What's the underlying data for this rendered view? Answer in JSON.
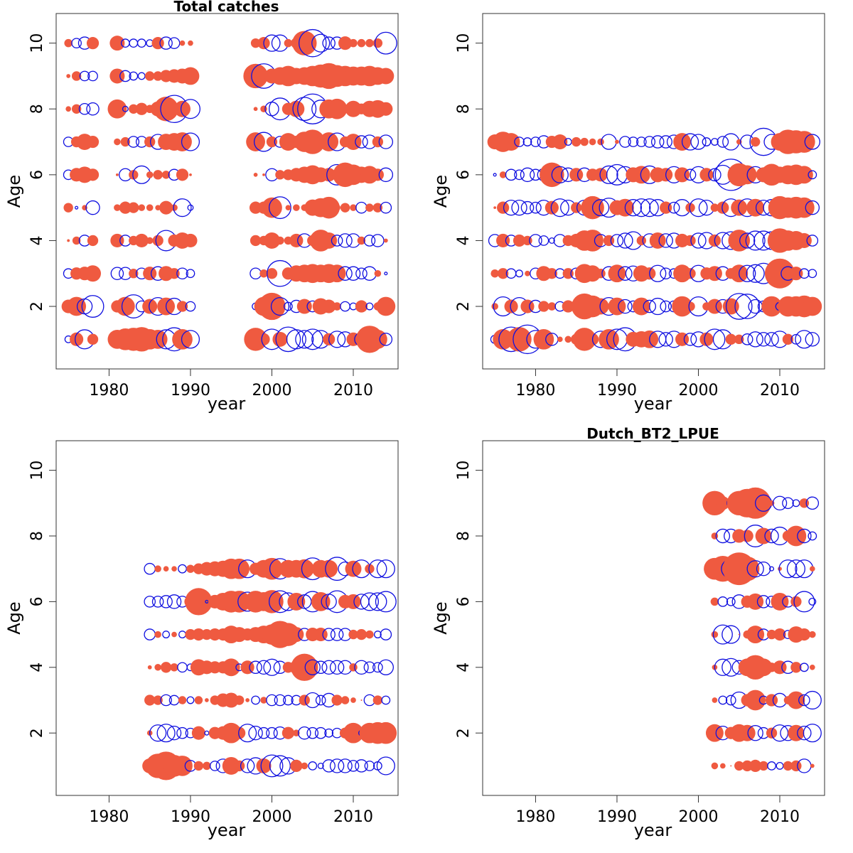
{
  "figure": {
    "background": "#ffffff",
    "positive_color": "#ef5a40",
    "negative_color": "#1010e0"
  },
  "chart_data": [
    {
      "type": "scatter",
      "subtype": "bubble",
      "title": "Total catches",
      "xlabel": "year",
      "ylabel": "Age",
      "xlim": [
        1973.5,
        2015.5
      ],
      "ylim": [
        0.1,
        10.9
      ],
      "x_ticks": [
        1980,
        1990,
        2000,
        2010
      ],
      "y_ticks": [
        2,
        4,
        6,
        8,
        10
      ],
      "x": [
        1975,
        1976,
        1977,
        1978,
        1981,
        1982,
        1983,
        1984,
        1985,
        1986,
        1987,
        1988,
        1989,
        1990,
        1998,
        1999,
        2000,
        2001,
        2002,
        2003,
        2004,
        2005,
        2006,
        2007,
        2008,
        2009,
        2010,
        2011,
        2012,
        2013,
        2014
      ],
      "ages": [
        1,
        2,
        3,
        4,
        5,
        6,
        7,
        8,
        9,
        10
      ],
      "residuals": [
        [
          -0.5,
          1.0,
          -1.4,
          0.8,
          1.4,
          1.6,
          1.7,
          1.8,
          1.5,
          1.4,
          -1.4,
          -1.7,
          1.5,
          -1.3,
          1.7,
          0.9,
          -1.5,
          1.1,
          -1.8,
          -1.4,
          -1.3,
          -1.5,
          -1.3,
          0.9,
          -1.2,
          -1.1,
          1.0,
          -1.0,
          2.0,
          1.4,
          -0.9
        ],
        [
          1.0,
          1.4,
          -1.1,
          -1.6,
          0.9,
          1.4,
          -1.7,
          -0.8,
          1.1,
          -1.3,
          1.3,
          -1.2,
          0.8,
          -0.7,
          -0.5,
          1.4,
          2.0,
          -1.3,
          -0.6,
          -0.9,
          1.1,
          -0.8,
          1.2,
          1.0,
          0.6,
          -0.7,
          -0.5,
          0.9,
          -0.5,
          0.6,
          1.4
        ],
        [
          -0.7,
          0.9,
          1.0,
          1.2,
          -0.9,
          -0.9,
          0.7,
          -0.8,
          1.0,
          -1.0,
          1.1,
          0.8,
          -0.8,
          -0.6,
          -0.8,
          0.6,
          0.8,
          -1.9,
          0.9,
          1.2,
          1.3,
          1.4,
          1.3,
          1.4,
          1.3,
          -1.0,
          -1.0,
          -0.8,
          -1.0,
          0.5,
          -0.2
        ],
        [
          0.2,
          0.6,
          -0.8,
          0.8,
          1.0,
          -0.8,
          0.7,
          1.0,
          0.5,
          0.8,
          -1.5,
          0.9,
          1.2,
          1.0,
          0.8,
          0.7,
          1.2,
          0.6,
          0.6,
          1.0,
          -1.0,
          0.8,
          1.6,
          1.2,
          -0.8,
          -1.0,
          -1.0,
          0.6,
          -0.8,
          -0.9,
          0.3
        ],
        [
          0.7,
          -0.2,
          0.4,
          -1.0,
          0.5,
          0.9,
          0.8,
          0.5,
          0.5,
          0.4,
          1.0,
          0.5,
          -1.3,
          -0.4,
          0.9,
          0.9,
          1.5,
          -1.6,
          0.4,
          0.5,
          0.5,
          1.2,
          1.4,
          1.6,
          0.5,
          0.7,
          0.5,
          -0.8,
          0.6,
          0.7,
          -0.8
        ],
        [
          -0.7,
          1.0,
          1.2,
          0.9,
          0.2,
          -0.9,
          0.7,
          -1.3,
          0.5,
          0.7,
          0.6,
          -0.8,
          0.9,
          0.2,
          0.3,
          0.2,
          -0.9,
          0.7,
          0.8,
          1.0,
          1.2,
          1.4,
          1.1,
          1.0,
          -1.5,
          1.8,
          1.5,
          1.2,
          1.3,
          0.9,
          -1.0
        ],
        [
          -0.7,
          0.8,
          1.2,
          0.9,
          0.5,
          0.7,
          -0.8,
          -0.8,
          0.8,
          -1.1,
          1.2,
          1.3,
          1.4,
          -1.3,
          1.4,
          -1.4,
          0.8,
          -0.8,
          1.3,
          0.9,
          1.5,
          1.8,
          0.8,
          1.4,
          -1.3,
          0.8,
          1.2,
          -0.9,
          -1.0,
          0.8,
          -1.0
        ],
        [
          0.4,
          0.7,
          -0.8,
          -0.9,
          1.4,
          -0.4,
          0.7,
          0.9,
          0.6,
          1.1,
          1.8,
          -2.0,
          1.2,
          -1.4,
          0.3,
          0.5,
          -1.0,
          -1.6,
          0.9,
          1.2,
          -1.7,
          -2.2,
          -1.3,
          1.4,
          1.5,
          0.2,
          1.2,
          0.8,
          1.2,
          1.3,
          1.0
        ],
        [
          0.3,
          0.7,
          -0.7,
          -0.7,
          1.1,
          -0.8,
          -0.6,
          -0.5,
          0.7,
          0.7,
          0.9,
          1.0,
          1.1,
          1.3,
          1.8,
          -1.8,
          1.1,
          1.3,
          1.5,
          1.2,
          1.3,
          1.5,
          1.7,
          1.9,
          1.6,
          1.5,
          1.4,
          1.4,
          1.5,
          1.3,
          1.2
        ],
        [
          0.6,
          -0.7,
          -0.9,
          0.9,
          1.1,
          -0.6,
          -0.6,
          -0.6,
          -0.5,
          0.9,
          -0.9,
          -0.8,
          0.4,
          0.4,
          0.7,
          0.9,
          -1.2,
          -1.2,
          0.6,
          0.8,
          1.8,
          -2.0,
          -1.3,
          -0.9,
          -0.9,
          1.0,
          0.6,
          0.6,
          0.6,
          0.7,
          -1.6
        ]
      ]
    },
    {
      "type": "scatter",
      "subtype": "bubble",
      "title": "",
      "xlabel": "year",
      "ylabel": "Age",
      "xlim": [
        1973.5,
        2015.5
      ],
      "ylim": [
        0.1,
        10.9
      ],
      "x_ticks": [
        1980,
        1990,
        2000,
        2010
      ],
      "y_ticks": [
        2,
        4,
        6,
        8,
        10
      ],
      "x": [
        1975,
        1976,
        1977,
        1978,
        1979,
        1980,
        1981,
        1982,
        1983,
        1984,
        1985,
        1986,
        1987,
        1988,
        1989,
        1990,
        1991,
        1992,
        1993,
        1994,
        1995,
        1996,
        1997,
        1998,
        1999,
        2000,
        2001,
        2002,
        2003,
        2004,
        2005,
        2006,
        2007,
        2008,
        2009,
        2010,
        2011,
        2012,
        2013,
        2014
      ],
      "ages": [
        1,
        2,
        3,
        4,
        5,
        6,
        7
      ],
      "residuals": [
        [
          -0.6,
          1.5,
          -1.8,
          1.8,
          -2.1,
          -1.3,
          1.5,
          -0.9,
          0.4,
          0.5,
          0.8,
          1.7,
          0.9,
          -1.2,
          1.5,
          -1.5,
          -1.7,
          1.1,
          1.2,
          1.3,
          -1.2,
          -1.0,
          -1.2,
          1.0,
          -0.9,
          -1.1,
          1.0,
          -1.5,
          -1.4,
          0.8,
          0.7,
          -0.8,
          -1.1,
          -1.0,
          -1.0,
          -1.2,
          0.8,
          -0.7,
          -1.3,
          -1.0
        ],
        [
          0.5,
          -1.4,
          1.0,
          -1.3,
          1.0,
          -0.9,
          0.8,
          0.6,
          -0.7,
          0.9,
          0.8,
          1.9,
          1.6,
          1.2,
          -1.3,
          1.3,
          -1.0,
          -0.8,
          1.3,
          -0.9,
          -1.2,
          -0.8,
          -0.8,
          1.5,
          0.7,
          -1.4,
          0.6,
          1.1,
          -1.0,
          1.2,
          -1.9,
          -1.8,
          -1.0,
          -0.8,
          1.5,
          -0.6,
          1.5,
          1.5,
          1.6,
          1.4
        ],
        [
          0.6,
          0.8,
          -0.7,
          -0.5,
          0.4,
          -0.8,
          1.1,
          0.8,
          -0.7,
          0.8,
          -0.8,
          1.4,
          1.2,
          0.7,
          -1.0,
          1.3,
          -1.0,
          -1.1,
          1.2,
          0.9,
          -1.2,
          -0.8,
          -0.7,
          1.3,
          0.8,
          -1.2,
          0.9,
          1.1,
          -1.0,
          0.8,
          1.3,
          -1.2,
          -1.3,
          -1.5,
          1.0,
          2.2,
          -1.0,
          1.0,
          -0.7,
          -0.6
        ],
        [
          -0.9,
          1.0,
          -0.8,
          0.9,
          0.7,
          -0.9,
          -0.7,
          -0.4,
          -0.9,
          0.8,
          1.0,
          1.5,
          1.6,
          -0.9,
          0.8,
          -0.9,
          -1.1,
          -1.3,
          0.7,
          -1.0,
          1.2,
          -1.0,
          -1.1,
          1.0,
          0.8,
          -1.1,
          -1.2,
          0.9,
          -1.2,
          -1.3,
          1.6,
          -1.1,
          -1.4,
          -1.4,
          -1.3,
          1.8,
          1.5,
          1.4,
          1.1,
          -0.8
        ],
        [
          0.2,
          0.9,
          -1.1,
          -1.1,
          -0.9,
          -0.8,
          -1.1,
          1.0,
          -1.3,
          -1.1,
          0.8,
          -1.1,
          1.7,
          -1.2,
          -1.4,
          1.1,
          1.3,
          -1.2,
          -1.3,
          -1.3,
          -1.2,
          0.9,
          -0.8,
          -1.2,
          0.7,
          -1.3,
          -1.1,
          0.6,
          0.9,
          -1.3,
          1.2,
          -1.3,
          1.3,
          -1.1,
          -1.2,
          1.7,
          1.5,
          1.6,
          1.5,
          -1.0
        ],
        [
          -0.2,
          0.5,
          -0.8,
          -0.7,
          -1.0,
          -0.8,
          -0.9,
          1.8,
          -1.2,
          -1.0,
          1.0,
          -1.0,
          0.9,
          1.0,
          -1.3,
          -1.5,
          -1.2,
          1.1,
          1.3,
          -1.3,
          1.1,
          1.0,
          -1.2,
          1.1,
          -0.8,
          -1.2,
          1.0,
          -0.9,
          -1.4,
          -2.3,
          1.7,
          1.4,
          -1.2,
          1.1,
          1.6,
          1.2,
          1.4,
          1.5,
          1.3,
          -0.6
        ],
        [
          1.1,
          1.5,
          1.3,
          -0.7,
          -0.6,
          -0.7,
          -0.9,
          0.9,
          1.1,
          -0.5,
          0.7,
          0.6,
          0.5,
          0.5,
          -1.1,
          0.3,
          -0.8,
          -0.7,
          -0.7,
          -0.8,
          -0.9,
          -0.9,
          -1.0,
          1.3,
          -1.2,
          -1.1,
          -0.6,
          -0.5,
          -0.8,
          -1.2,
          0.4,
          -1.0,
          0.7,
          -2.0,
          -1.1,
          1.3,
          1.8,
          1.7,
          1.6,
          -1.1
        ]
      ]
    },
    {
      "type": "scatter",
      "subtype": "bubble",
      "title": "",
      "xlabel": "year",
      "ylabel": "Age",
      "xlim": [
        1973.5,
        2015.5
      ],
      "ylim": [
        0.1,
        10.9
      ],
      "x_ticks": [
        1980,
        1990,
        2000,
        2010
      ],
      "y_ticks": [
        2,
        4,
        6,
        8,
        10
      ],
      "x": [
        1985,
        1986,
        1987,
        1988,
        1989,
        1990,
        1991,
        1992,
        1993,
        1994,
        1995,
        1996,
        1997,
        1998,
        1999,
        2000,
        2001,
        2002,
        2003,
        2004,
        2005,
        2006,
        2007,
        2008,
        2009,
        2010,
        2011,
        2012,
        2013,
        2014
      ],
      "ages": [
        1,
        2,
        3,
        4,
        5,
        6,
        7
      ],
      "residuals": [
        [
          1.1,
          1.8,
          2.1,
          1.6,
          1.5,
          -0.8,
          0.7,
          0.6,
          -0.7,
          -1.0,
          1.3,
          0.8,
          -1.0,
          -1.2,
          1.1,
          -1.6,
          -1.5,
          -1.2,
          0.9,
          0.5,
          -0.6,
          -0.4,
          -0.9,
          -1.0,
          -1.0,
          -0.8,
          -0.9,
          -0.7,
          -0.6,
          -1.3
        ],
        [
          0.4,
          -1.2,
          -1.3,
          -1.0,
          -0.8,
          -0.7,
          1.0,
          -0.3,
          0.9,
          1.0,
          1.5,
          0.9,
          -1.3,
          -1.0,
          -0.8,
          -0.8,
          -0.9,
          0.9,
          0.5,
          -0.9,
          -0.8,
          -0.8,
          -0.6,
          -0.7,
          0.8,
          1.5,
          -0.4,
          1.5,
          1.6,
          1.6
        ],
        [
          0.8,
          0.7,
          -0.8,
          -0.7,
          0.6,
          -0.5,
          0.6,
          0.3,
          0.7,
          1.0,
          1.1,
          0.7,
          0.3,
          -0.6,
          0.5,
          -0.8,
          -0.8,
          -0.7,
          -0.7,
          0.8,
          -1.1,
          -0.7,
          -1.0,
          0.8,
          0.6,
          0.4,
          0.1,
          -0.8,
          0.7,
          -0.6
        ],
        [
          0.3,
          0.5,
          0.8,
          0.6,
          -0.7,
          -0.5,
          1.2,
          1.0,
          0.9,
          0.9,
          1.3,
          -0.5,
          1.0,
          -0.9,
          -1.0,
          -1.2,
          -0.9,
          0.8,
          1.0,
          2.0,
          -1.1,
          -0.9,
          -1.0,
          -1.0,
          -1.0,
          0.6,
          -1.0,
          -0.8,
          -0.7,
          -1.1
        ],
        [
          -0.8,
          0.5,
          -0.5,
          0.4,
          -0.5,
          0.8,
          0.9,
          0.8,
          0.9,
          0.9,
          1.3,
          1.1,
          0.9,
          1.1,
          1.3,
          1.5,
          2.0,
          1.7,
          1.1,
          -0.9,
          1.0,
          1.0,
          -0.9,
          -0.9,
          -0.9,
          0.7,
          0.8,
          0.6,
          -0.5,
          -0.8
        ],
        [
          -0.8,
          -0.8,
          -0.9,
          -1.0,
          -0.8,
          0.9,
          2.0,
          -0.2,
          1.0,
          1.3,
          1.6,
          1.6,
          -1.4,
          1.6,
          1.4,
          1.7,
          -1.6,
          -1.3,
          1.3,
          -1.0,
          -1.5,
          1.4,
          -1.1,
          -1.6,
          1.0,
          1.1,
          -1.1,
          -1.3,
          -1.3,
          -1.5
        ],
        [
          -0.8,
          0.5,
          0.4,
          0.4,
          -0.6,
          0.6,
          0.8,
          1.0,
          1.1,
          1.2,
          1.5,
          1.5,
          -1.3,
          0.9,
          1.3,
          1.6,
          -1.5,
          1.3,
          1.3,
          1.4,
          -1.6,
          1.3,
          1.3,
          -1.7,
          -1.0,
          1.2,
          -1.3,
          0.7,
          -1.3,
          -1.3
        ]
      ]
    },
    {
      "type": "scatter",
      "subtype": "bubble",
      "title": "Dutch_BT2_LPUE",
      "xlabel": "year",
      "ylabel": "Age",
      "xlim": [
        1973.5,
        2015.5
      ],
      "ylim": [
        0.1,
        10.9
      ],
      "x_ticks": [
        1980,
        1990,
        2000,
        2010
      ],
      "y_ticks": [
        2,
        4,
        6,
        8,
        10
      ],
      "x": [
        2002,
        2003,
        2004,
        2005,
        2006,
        2007,
        2008,
        2009,
        2010,
        2011,
        2012,
        2013,
        2014
      ],
      "ages": [
        1,
        2,
        3,
        4,
        5,
        6,
        7,
        8,
        9
      ],
      "residuals": [
        [
          0.5,
          0.4,
          0.1,
          0.7,
          0.8,
          0.9,
          0.7,
          -0.6,
          -0.5,
          0.7,
          0.8,
          -1.0,
          0.3
        ],
        [
          1.3,
          -1.0,
          0.9,
          1.3,
          1.2,
          -1.1,
          -0.8,
          0.8,
          -1.2,
          -1.1,
          1.2,
          -1.0,
          -1.3
        ],
        [
          0.4,
          -0.6,
          -0.7,
          -1.2,
          0.9,
          1.5,
          -0.6,
          0.9,
          -1.0,
          0.6,
          1.3,
          -0.8,
          -1.3
        ],
        [
          0.4,
          -1.2,
          -1.3,
          -1.0,
          1.3,
          1.8,
          1.3,
          0.7,
          1.0,
          -0.9,
          0.8,
          -0.6,
          0.4
        ],
        [
          0.5,
          -1.4,
          -1.3,
          0.1,
          0.6,
          1.3,
          -0.8,
          0.7,
          0.9,
          -0.6,
          1.2,
          0.9,
          0.5
        ],
        [
          0.6,
          -0.7,
          -0.6,
          -1.0,
          0.9,
          1.2,
          -0.9,
          -0.8,
          1.3,
          -0.8,
          0.8,
          -1.5,
          -0.5
        ],
        [
          1.6,
          1.9,
          -1.4,
          2.4,
          1.8,
          -1.2,
          -1.0,
          -0.3,
          0.3,
          -1.3,
          -1.3,
          -1.3,
          0.4
        ],
        [
          0.5,
          -1.0,
          -1.0,
          1.0,
          0.9,
          -1.6,
          1.2,
          -1.0,
          -1.3,
          0.8,
          1.5,
          -1.0,
          -0.6
        ],
        [
          1.8,
          1.0,
          -0.6,
          1.8,
          2.1,
          2.3,
          -1.2,
          0.4,
          -1.0,
          -0.8,
          -0.5,
          0.7,
          -0.9
        ]
      ]
    }
  ]
}
